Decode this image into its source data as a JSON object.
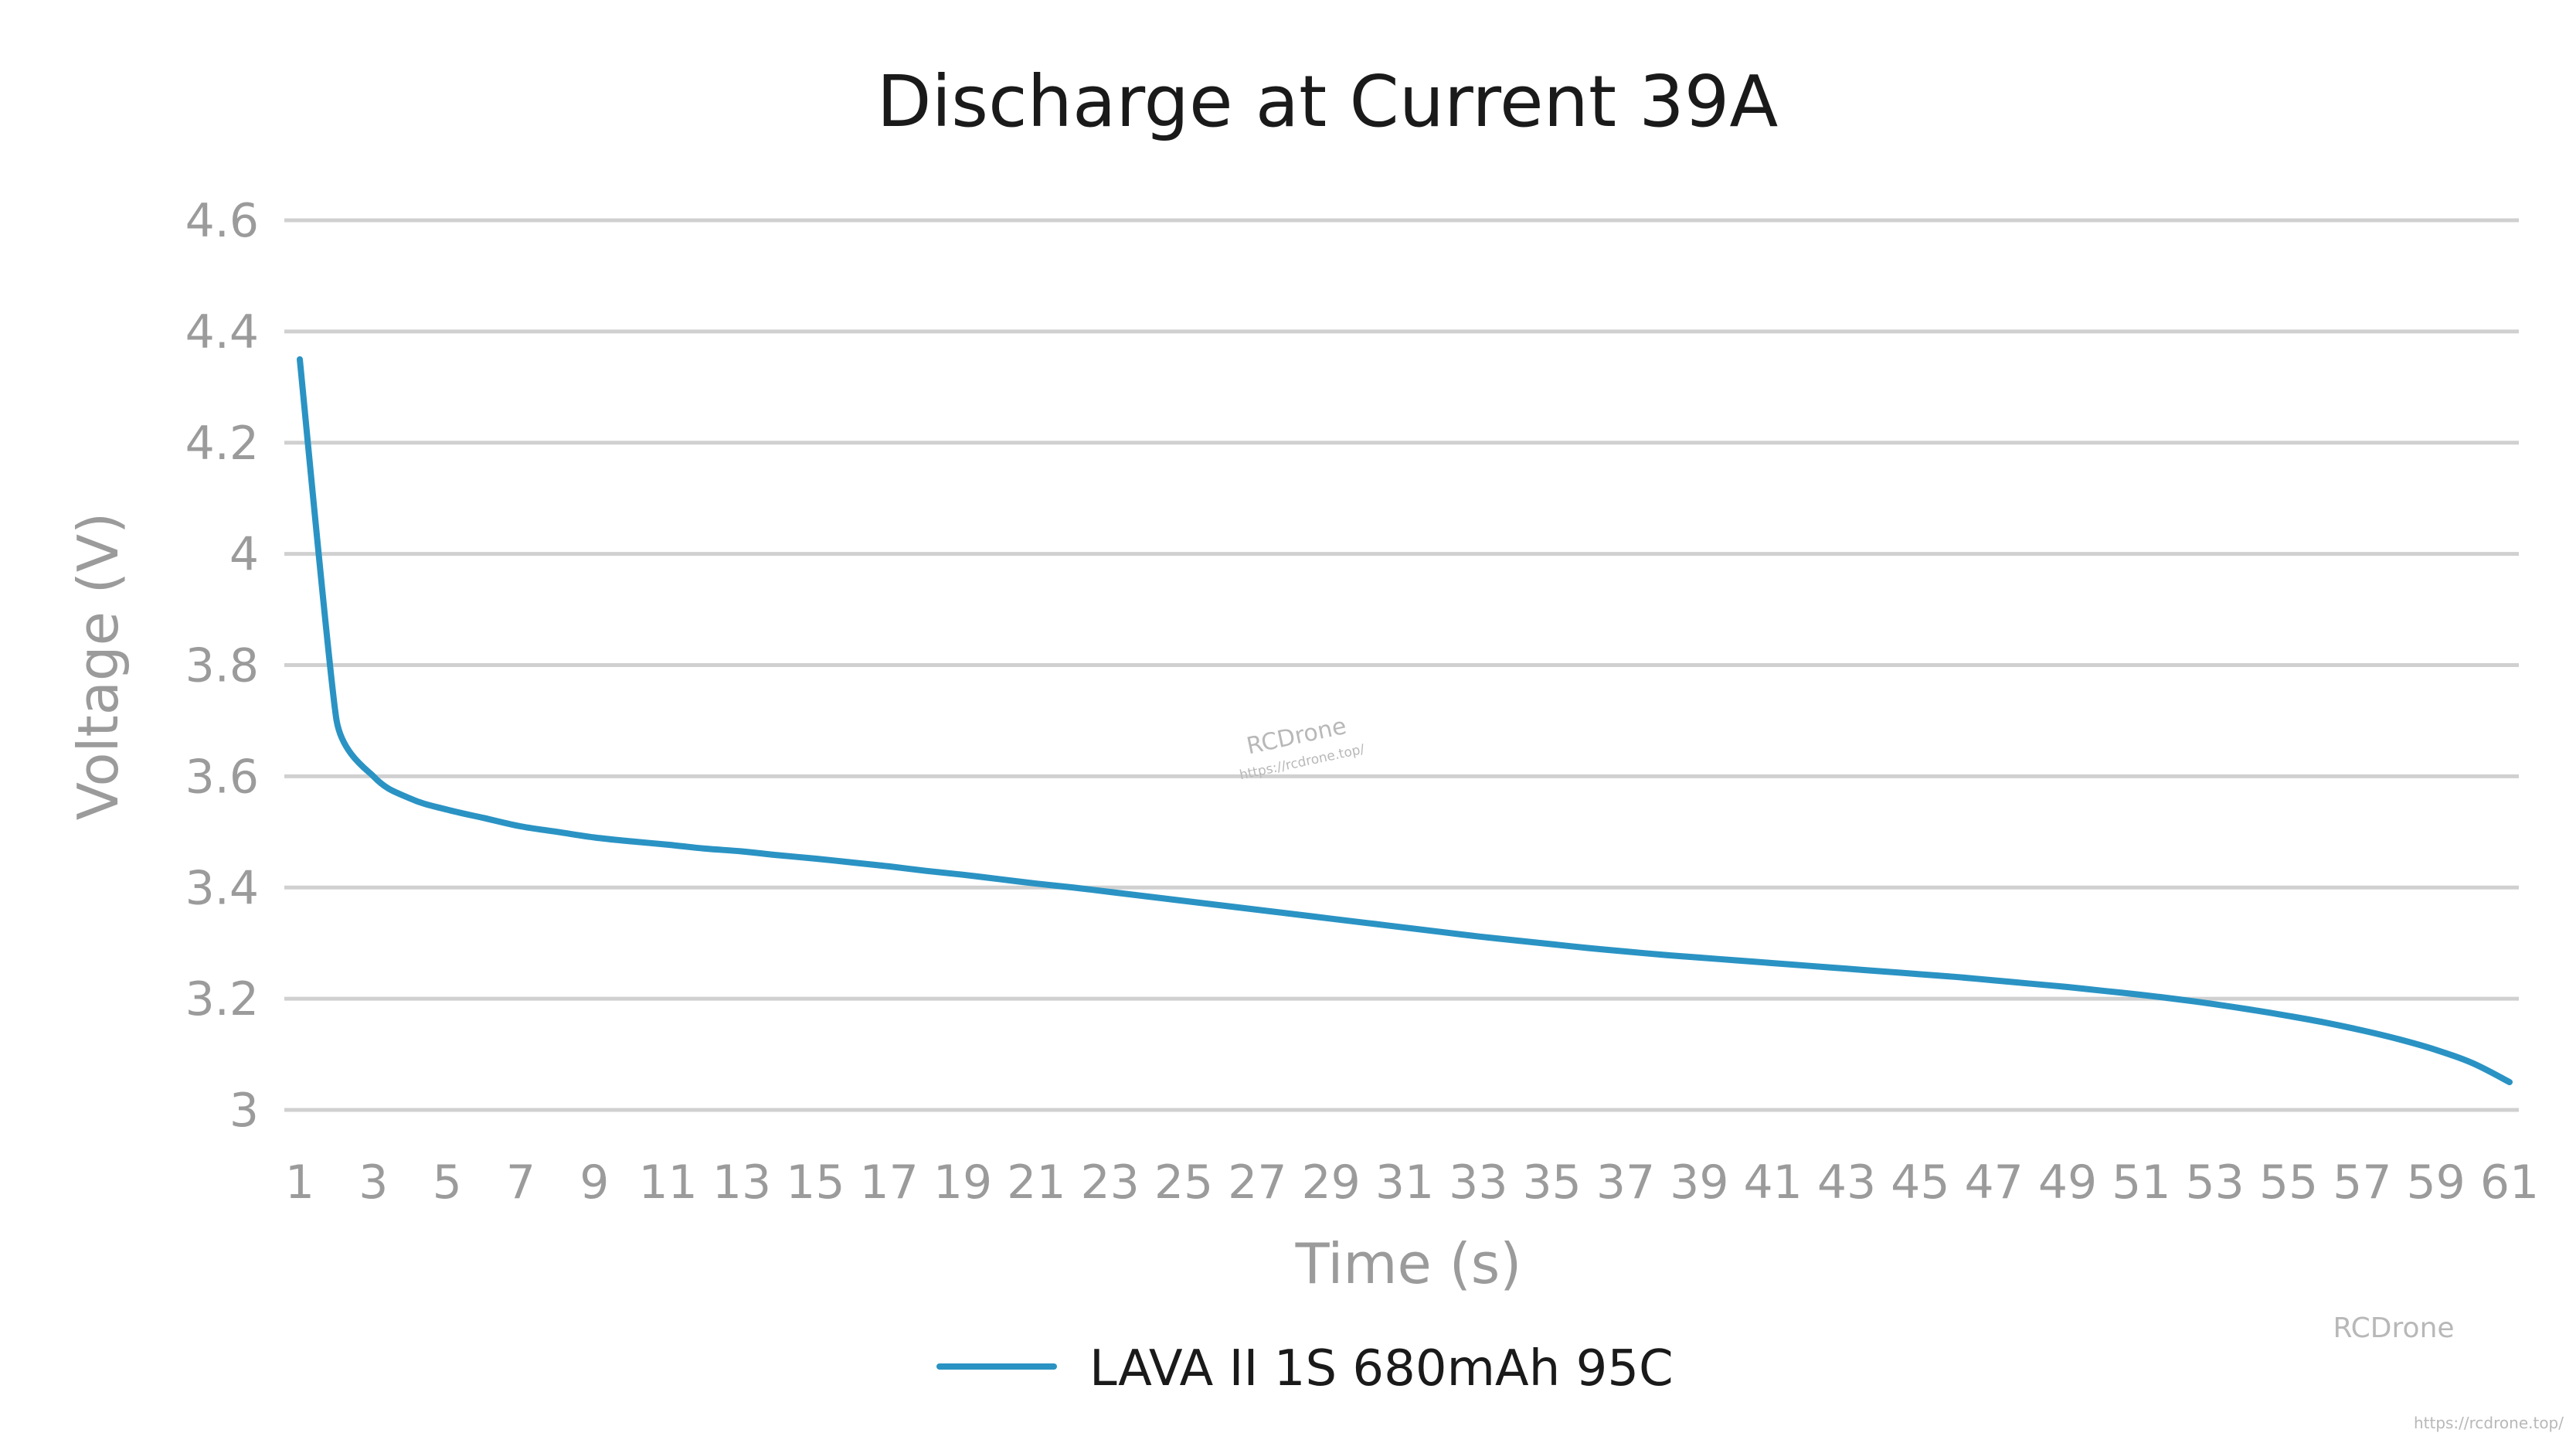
{
  "chart_data": {
    "type": "line",
    "title": "Discharge at Current 39A",
    "xlabel": "Time (s)",
    "ylabel": "Voltage (V)",
    "x_categories": [
      "1",
      "2",
      "3",
      "4",
      "5",
      "6",
      "7",
      "8",
      "9",
      "10",
      "11",
      "12",
      "13",
      "14",
      "15",
      "16",
      "17",
      "18",
      "19",
      "20",
      "21",
      "22",
      "23",
      "24",
      "25",
      "26",
      "27",
      "28",
      "29",
      "30",
      "31",
      "32",
      "33",
      "34",
      "35",
      "36",
      "37",
      "38",
      "39",
      "40",
      "41",
      "42",
      "43",
      "44",
      "45",
      "46",
      "47",
      "48",
      "49",
      "50",
      "51",
      "52",
      "53",
      "54",
      "55",
      "56",
      "57",
      "58",
      "59",
      "60",
      "61"
    ],
    "x_tick_labels": [
      "1",
      "3",
      "5",
      "7",
      "9",
      "11",
      "13",
      "15",
      "17",
      "19",
      "21",
      "23",
      "25",
      "27",
      "29",
      "31",
      "33",
      "35",
      "37",
      "39",
      "41",
      "43",
      "45",
      "47",
      "49",
      "51",
      "53",
      "55",
      "57",
      "59",
      "61"
    ],
    "y_ticks": [
      "4.6",
      "4.4",
      "4.2",
      "4",
      "3.8",
      "3.6",
      "3.4",
      "3.2",
      "3"
    ],
    "ylim": [
      3,
      4.6
    ],
    "grid": true,
    "legend_position": "bottom",
    "series": [
      {
        "name": "LAVA II 1S 680mAh 95C",
        "color": "#2a93c4",
        "values": [
          4.35,
          3.7,
          3.6,
          3.56,
          3.54,
          3.525,
          3.51,
          3.5,
          3.49,
          3.483,
          3.477,
          3.47,
          3.465,
          3.458,
          3.452,
          3.445,
          3.438,
          3.43,
          3.423,
          3.415,
          3.407,
          3.4,
          3.392,
          3.384,
          3.376,
          3.368,
          3.36,
          3.352,
          3.344,
          3.336,
          3.328,
          3.32,
          3.312,
          3.305,
          3.298,
          3.291,
          3.285,
          3.279,
          3.274,
          3.269,
          3.264,
          3.259,
          3.254,
          3.249,
          3.244,
          3.239,
          3.233,
          3.227,
          3.221,
          3.214,
          3.207,
          3.199,
          3.19,
          3.18,
          3.169,
          3.157,
          3.143,
          3.127,
          3.108,
          3.084,
          3.05
        ]
      }
    ]
  },
  "watermarks": {
    "center_name": "RCDrone",
    "center_url": "https://rcdrone.top/",
    "corner_name": "RCDrone",
    "corner_url": "https://rcdrone.top/"
  }
}
